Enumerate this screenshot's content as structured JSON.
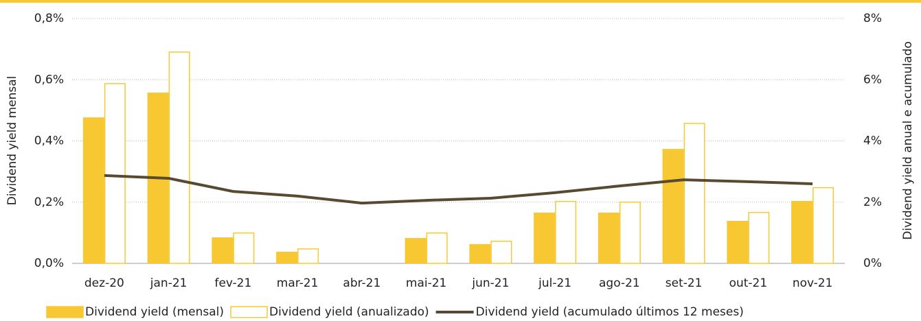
{
  "chart_data": {
    "type": "bar",
    "y_label": "Dividend yield mensal",
    "y2_label": "Dividend yield anual e acumulado",
    "categories": [
      "dez-20",
      "jan-21",
      "fev-21",
      "mar-21",
      "abr-21",
      "mai-21",
      "jun-21",
      "jul-21",
      "ago-21",
      "set-21",
      "out-21",
      "nov-21"
    ],
    "series": [
      {
        "name": "Dividend yield (mensal)",
        "type": "bar",
        "color": "#f8c832",
        "axis": "y",
        "values": [
          0.477,
          0.558,
          0.085,
          0.038,
          0,
          0.083,
          0.063,
          0.166,
          0.166,
          0.374,
          0.139,
          0.204
        ]
      },
      {
        "name": "Dividend yield (anualizado)",
        "type": "bar-outline",
        "color": "#f8c832",
        "axis": "y2",
        "values": [
          5.89,
          6.92,
          1.01,
          0.49,
          0,
          1.01,
          0.74,
          2.04,
          2.02,
          4.59,
          1.68,
          2.49
        ]
      },
      {
        "name": "Dividend yield (acumulado últimos 12 meses)",
        "type": "line",
        "color": "#584a30",
        "axis": "y2",
        "values": [
          2.87,
          2.78,
          2.35,
          2.2,
          1.97,
          2.06,
          2.13,
          2.31,
          2.53,
          2.73,
          2.67,
          2.6
        ]
      }
    ],
    "ylim": [
      0,
      0.8
    ],
    "yticks": [
      {
        "value": 0,
        "label": "0,0%"
      },
      {
        "value": 0.2,
        "label": "0,2%"
      },
      {
        "value": 0.4,
        "label": "0,4%"
      },
      {
        "value": 0.6,
        "label": "0,6%"
      },
      {
        "value": 0.8,
        "label": "0,8%"
      }
    ],
    "y2lim": [
      0,
      8
    ],
    "y2ticks": [
      {
        "value": 0,
        "label": "0%"
      },
      {
        "value": 2,
        "label": "2%"
      },
      {
        "value": 4,
        "label": "4%"
      },
      {
        "value": 6,
        "label": "6%"
      },
      {
        "value": 8,
        "label": "8%"
      }
    ],
    "grid": true
  }
}
